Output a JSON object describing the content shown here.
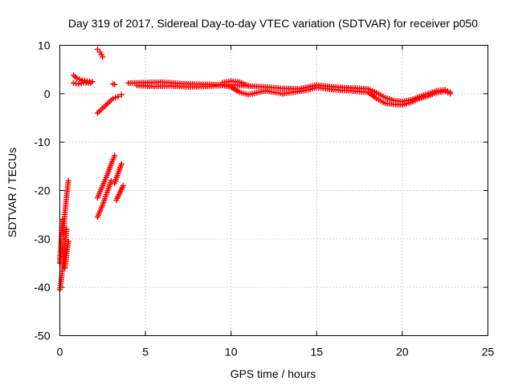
{
  "chart_data": {
    "type": "scatter",
    "title": "Day 319 of 2017, Sidereal Day-to-day VTEC variation (SDTVAR) for receiver p050",
    "xlabel": "GPS time / hours",
    "ylabel": "SDTVAR / TECUs",
    "xlim": [
      0,
      25
    ],
    "ylim": [
      -50,
      10
    ],
    "xticks": [
      0,
      5,
      10,
      15,
      20,
      25
    ],
    "yticks": [
      -50,
      -40,
      -30,
      -20,
      -10,
      0,
      10
    ],
    "grid": true,
    "marker": "+",
    "color": "#ff0000",
    "series": [
      {
        "name": "SDTVAR",
        "segments": [
          {
            "x": [
              0.0,
              0.1,
              0.2,
              0.3,
              0.4
            ],
            "y": [
              -40.5,
              -38.0,
              -34.5,
              -31.0,
              -28.0
            ]
          },
          {
            "x": [
              0.0,
              0.08,
              0.15
            ],
            "y": [
              -35.0,
              -30.0,
              -26.0
            ]
          },
          {
            "x": [
              0.2,
              0.3,
              0.4,
              0.5
            ],
            "y": [
              -29.0,
              -24.5,
              -21.0,
              -18.0
            ]
          },
          {
            "x": [
              0.3,
              0.4,
              0.5
            ],
            "y": [
              -36.0,
              -33.0,
              -30.5
            ]
          },
          {
            "x": [
              0.8,
              1.0,
              1.3,
              1.6,
              1.9
            ],
            "y": [
              3.8,
              3.2,
              2.8,
              2.6,
              2.5
            ]
          },
          {
            "x": [
              0.8,
              1.1,
              1.4,
              1.8
            ],
            "y": [
              2.2,
              2.0,
              2.3,
              2.2
            ]
          },
          {
            "x": [
              2.2,
              2.35,
              2.5
            ],
            "y": [
              9.2,
              8.6,
              7.6
            ]
          },
          {
            "x": [
              2.2,
              2.5,
              2.8,
              3.1,
              3.4,
              3.6
            ],
            "y": [
              -4.0,
              -3.0,
              -2.0,
              -1.0,
              -0.6,
              -0.2
            ]
          },
          {
            "x": [
              3.1,
              3.2
            ],
            "y": [
              2.0,
              1.9
            ]
          },
          {
            "x": [
              2.2,
              2.5,
              2.8,
              3.0,
              3.2
            ],
            "y": [
              -21.5,
              -19.0,
              -16.5,
              -14.5,
              -12.8
            ]
          },
          {
            "x": [
              2.2,
              2.5,
              2.8,
              3.0
            ],
            "y": [
              -25.5,
              -23.0,
              -20.0,
              -18.0
            ]
          },
          {
            "x": [
              3.2,
              3.4,
              3.6
            ],
            "y": [
              -18.5,
              -16.5,
              -14.5
            ]
          },
          {
            "x": [
              3.3,
              3.5,
              3.7
            ],
            "y": [
              -22.0,
              -20.5,
              -19.0
            ]
          },
          {
            "x": [
              4.0,
              5.0,
              6.0,
              7.0,
              8.0,
              9.0,
              10.0,
              11.0,
              12.0,
              13.0,
              14.0,
              15.0,
              16.0,
              17.0,
              18.0,
              18.5,
              19.0,
              19.5,
              20.0,
              20.5,
              21.0,
              21.5,
              22.0,
              22.5,
              22.8
            ],
            "y": [
              2.2,
              2.3,
              2.4,
              2.1,
              2.0,
              1.9,
              1.8,
              1.6,
              1.4,
              1.1,
              1.0,
              1.8,
              1.4,
              1.2,
              1.0,
              0.2,
              -0.8,
              -1.4,
              -1.6,
              -1.3,
              -0.6,
              0.0,
              0.6,
              0.8,
              0.3
            ]
          },
          {
            "x": [
              4.5,
              5.5,
              6.5,
              7.5,
              8.5,
              9.5,
              10.0,
              10.5,
              11.0,
              12.0,
              13.0,
              14.0,
              14.5,
              15.0,
              16.0,
              17.0,
              18.0,
              18.5,
              19.0,
              19.5,
              20.0,
              20.5,
              21.0,
              21.5,
              22.0,
              22.5,
              22.8
            ],
            "y": [
              1.7,
              1.5,
              1.6,
              1.4,
              1.5,
              1.7,
              1.4,
              0.3,
              -0.2,
              0.6,
              0.0,
              0.5,
              0.8,
              1.3,
              0.8,
              0.6,
              0.3,
              -1.0,
              -2.0,
              -2.2,
              -2.3,
              -1.8,
              -1.0,
              -0.5,
              0.2,
              0.5,
              0.0
            ]
          },
          {
            "x": [
              9.5,
              10.0,
              10.5,
              11.0
            ],
            "y": [
              2.3,
              2.6,
              2.4,
              1.7
            ]
          }
        ]
      }
    ]
  }
}
